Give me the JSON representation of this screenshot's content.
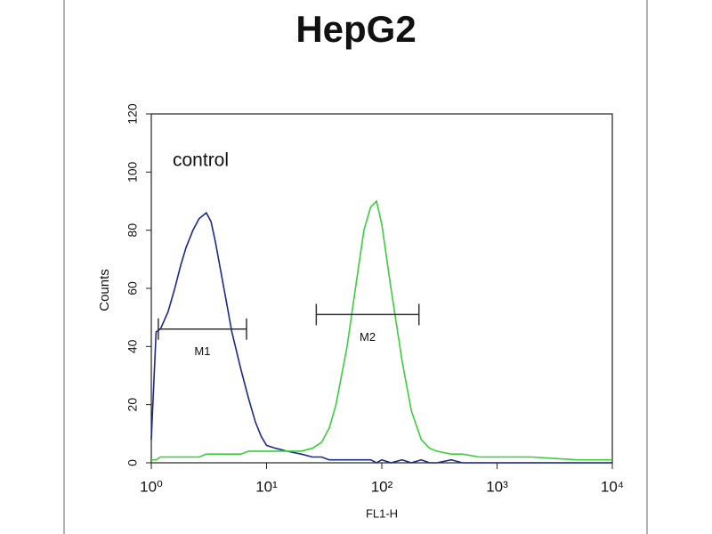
{
  "chart_data": {
    "type": "line",
    "title": "HepG2",
    "x_label": "FL1-H",
    "y_label": "Counts",
    "annotation": "control",
    "xscale": "log",
    "xlim": [
      1,
      10000
    ],
    "ylim": [
      0,
      120
    ],
    "xticks": [
      {
        "value": 1,
        "label": "10⁰"
      },
      {
        "value": 10,
        "label": "10¹"
      },
      {
        "value": 100,
        "label": "10²"
      },
      {
        "value": 1000,
        "label": "10³"
      },
      {
        "value": 10000,
        "label": "10⁴"
      }
    ],
    "yticks": [
      0,
      20,
      40,
      60,
      80,
      100,
      120
    ],
    "grid": false,
    "x": [
      1,
      1.1,
      1.2,
      1.4,
      1.6,
      1.8,
      2,
      2.3,
      2.6,
      3,
      3.3,
      3.6,
      4,
      4.5,
      5,
      6,
      7,
      8,
      9,
      10,
      12,
      15,
      20,
      25,
      30,
      35,
      40,
      50,
      60,
      70,
      80,
      90,
      100,
      120,
      150,
      180,
      220,
      260,
      300,
      400,
      500,
      700,
      1000,
      2000,
      5000,
      10000
    ],
    "series": [
      {
        "color": "#1c2a8a",
        "values": [
          8,
          45,
          46,
          52,
          60,
          68,
          74,
          80,
          84,
          86,
          83,
          76,
          66,
          55,
          45,
          32,
          22,
          14,
          9,
          6,
          5,
          4,
          3,
          2,
          2,
          1,
          1,
          1,
          1,
          1,
          1,
          0,
          1,
          0,
          1,
          0,
          1,
          0,
          0,
          1,
          0,
          0,
          0,
          0,
          0,
          0
        ]
      },
      {
        "color": "#3ccc3c",
        "values": [
          1,
          1,
          2,
          2,
          2,
          2,
          2,
          2,
          2,
          3,
          3,
          3,
          3,
          3,
          3,
          3,
          4,
          4,
          4,
          4,
          4,
          4,
          4,
          5,
          7,
          12,
          20,
          40,
          62,
          80,
          88,
          90,
          82,
          60,
          35,
          18,
          8,
          5,
          4,
          3,
          3,
          2,
          2,
          2,
          1,
          1
        ]
      }
    ],
    "markers": [
      {
        "label": "M1",
        "range": [
          1.15,
          6.7
        ],
        "y": 46
      },
      {
        "label": "M2",
        "range": [
          27,
          210
        ],
        "y": 51
      }
    ]
  }
}
